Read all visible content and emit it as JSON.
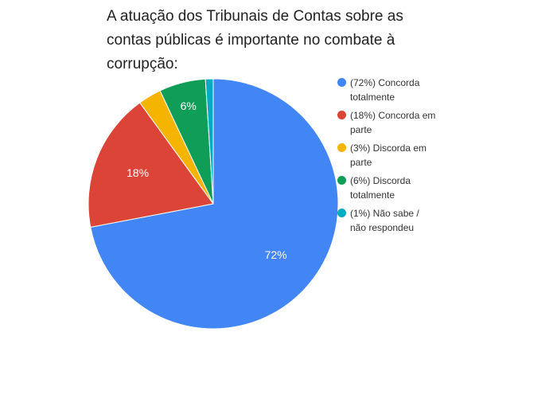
{
  "chart_data": {
    "type": "pie",
    "title": "A atuação dos Tribunais de Contas sobre as contas públicas é importante no combate à corrupção:",
    "categories": [
      "(72%) Concorda totalmente",
      "(18%) Concorda em parte",
      "(3%) Discorda em parte",
      "(6%) Discorda totalmente",
      "(1%) Não sabe / não respondeu"
    ],
    "values": [
      72,
      18,
      3,
      6,
      1
    ],
    "value_labels": [
      "72%",
      "18%",
      null,
      "6%",
      null
    ],
    "colors": [
      "#4285f4",
      "#db4437",
      "#f4b400",
      "#0f9d58",
      "#00acc1"
    ],
    "legend": "right"
  }
}
